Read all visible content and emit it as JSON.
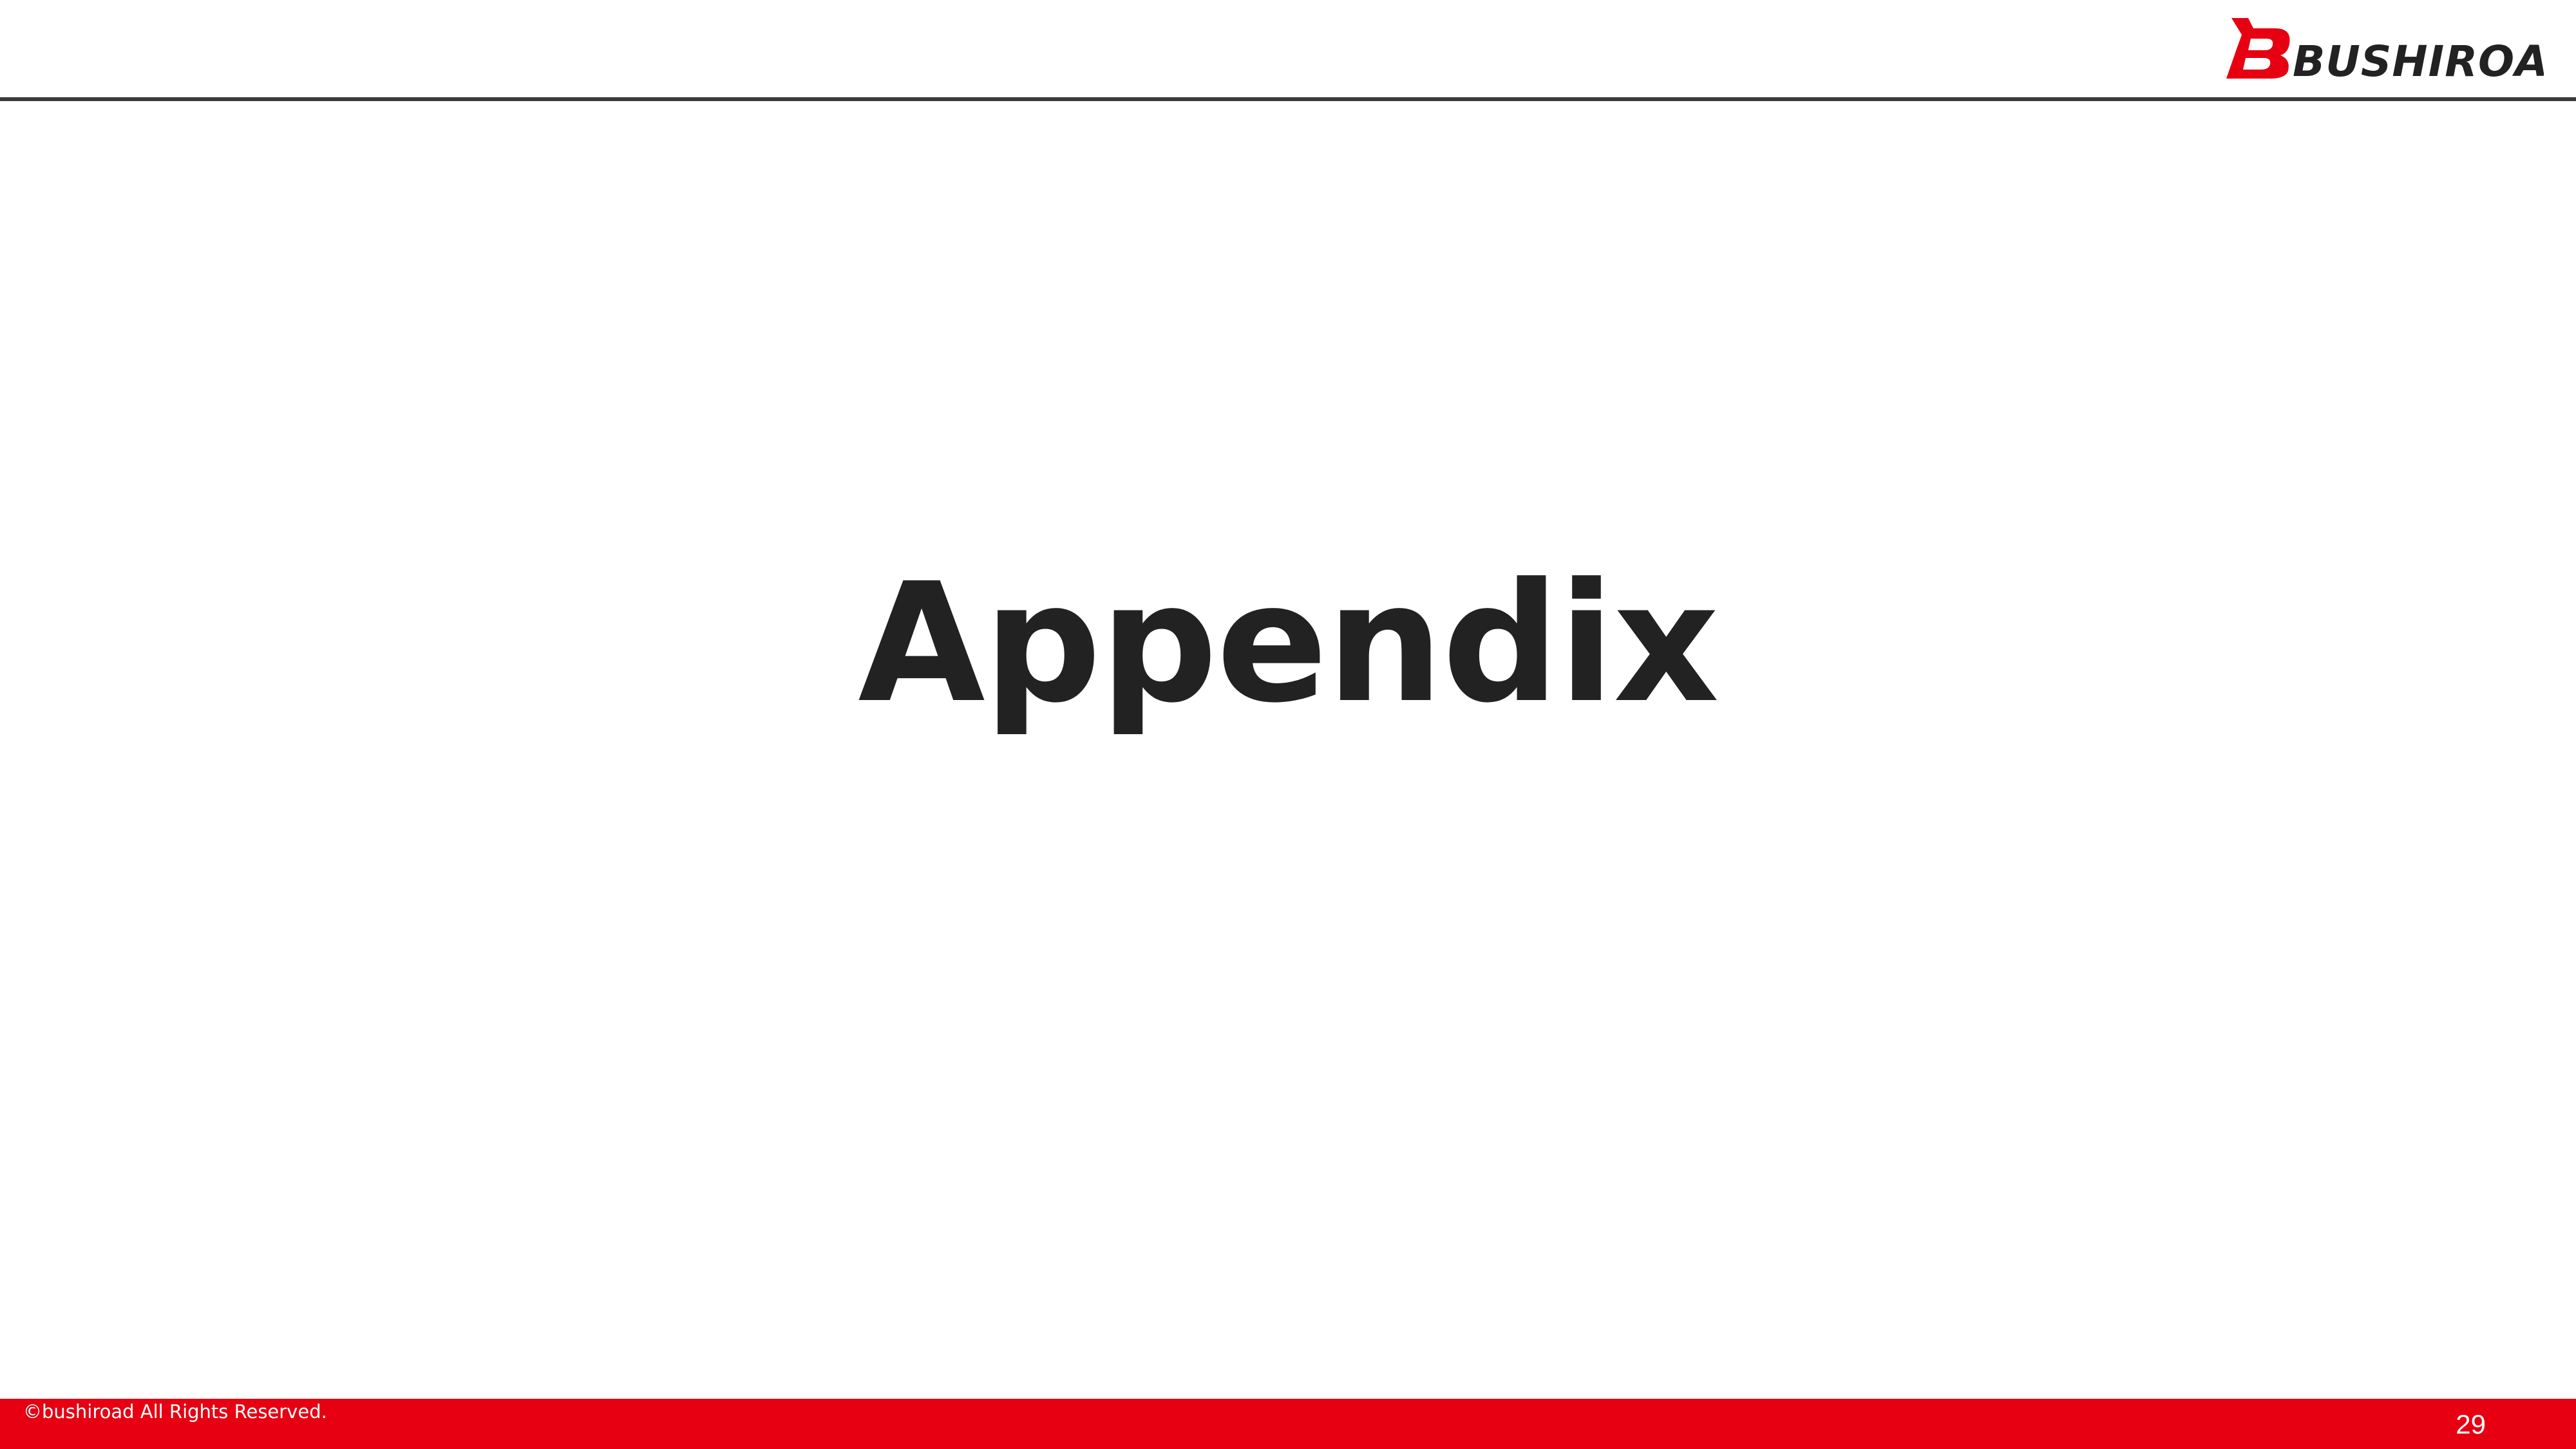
{
  "header": {
    "logo_text": "BUSHIROAD",
    "logo_mark": "B",
    "brand_color": "#e60012",
    "logo_text_color": "#222222"
  },
  "main": {
    "title": "Appendix"
  },
  "footer": {
    "copyright": "©bushiroad All Rights Reserved.",
    "page_number": "29",
    "bar_color": "#e60012"
  }
}
